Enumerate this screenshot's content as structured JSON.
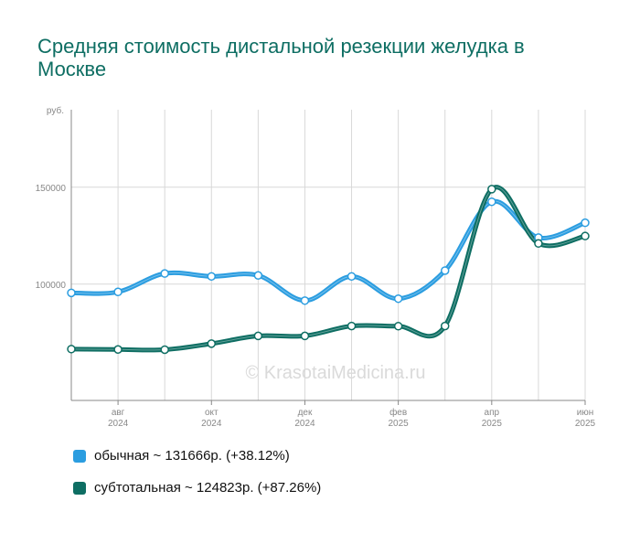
{
  "title": "Средняя стоимость дистальной резекции желудка в Москве",
  "watermark": "© KrasotaiMedicina.ru",
  "colors": {
    "series1": "#2b9de0",
    "series2": "#0e6e63",
    "grid": "#d8d8d8",
    "axis": "#888888"
  },
  "chart_data": {
    "type": "line",
    "title": "Средняя стоимость дистальной резекции желудка в Москве",
    "ylabel": "руб.",
    "ylim": [
      40000,
      190000
    ],
    "yticks": [
      100000,
      150000
    ],
    "grid": true,
    "legend_position": "bottom",
    "x": [
      "2024-07",
      "2024-08",
      "2024-09",
      "2024-10",
      "2024-11",
      "2024-12",
      "2025-01",
      "2025-02",
      "2025-03",
      "2025-04",
      "2025-05",
      "2025-06"
    ],
    "xtick_labels": [
      {
        "month": "авг",
        "year": "2024",
        "index": 1
      },
      {
        "month": "окт",
        "year": "2024",
        "index": 3
      },
      {
        "month": "дек",
        "year": "2024",
        "index": 5
      },
      {
        "month": "фев",
        "year": "2025",
        "index": 7
      },
      {
        "month": "апр",
        "year": "2025",
        "index": 9
      },
      {
        "month": "июн",
        "year": "2025",
        "index": 11
      }
    ],
    "series": [
      {
        "name": "обычная",
        "legend": "обычная ~ 131666р. (+38.12%)",
        "values": [
          95500,
          96000,
          105500,
          104000,
          104500,
          91500,
          104000,
          92500,
          107000,
          142500,
          124000,
          131666
        ]
      },
      {
        "name": "субтотальная",
        "legend": "субтотальная ~ 124823р. (+87.26%)",
        "values": [
          66500,
          66300,
          66200,
          69300,
          73300,
          73300,
          78400,
          78300,
          78400,
          149000,
          121000,
          124823
        ]
      }
    ]
  }
}
